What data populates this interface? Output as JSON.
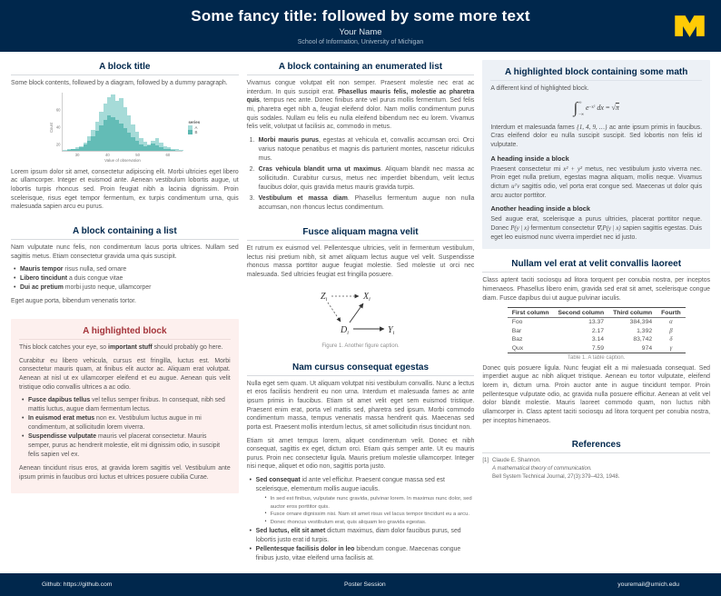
{
  "colors": {
    "michigan_blue": "#00274c",
    "maize": "#ffcb05",
    "block_title": "#00274c",
    "highlight_red_bg": "#fdf0ee",
    "highlight_red_title": "#a4343a",
    "highlight_blue_bg": "#edf1f6",
    "teal_light": "#a6dbd8",
    "teal_dark": "#5cb8b2",
    "body_text": "#565656"
  },
  "header": {
    "title": "Some fancy title: followed by some more text",
    "author": "Your Name",
    "institution": "School of Information, University of Michigan",
    "logo": "university-of-michigan-block-M"
  },
  "footer": {
    "left": "Github: https://github.com",
    "center": "Poster Session",
    "right": "youremail@umich.edu"
  },
  "col1": {
    "block1": {
      "title": "A block title",
      "intro": "Some block contents, followed by a diagram, followed by a dummy paragraph.",
      "para": "Lorem ipsum dolor sit amet, consectetur adipiscing elit. Morbi ultricies eget libero ac ullamcorper. Integer et euismod ante. Aenean vestibulum lobortis augue, ut lobortis turpis rhoncus sed. Proin feugiat nibh a lacinia dignissim. Proin scelerisque, risus eget tempor fermentum, ex turpis condimentum urna, quis malesuada sapien arcu eu purus."
    },
    "block2": {
      "title": "A block containing a list",
      "intro": "Nam vulputate nunc felis, non condimentum lacus porta ultrices. Nullam sed sagittis metus. Etiam consectetur gravida urna quis suscipit.",
      "items": [
        {
          "lead": "Mauris tempor",
          "rest": " risus nulla, sed ornare"
        },
        {
          "lead": "Libero tincidunt",
          "rest": " a duis congue vitae"
        },
        {
          "lead": "Dui ac pretium",
          "rest": " morbi justo neque, ullamcorper"
        }
      ],
      "outro": "Eget augue porta, bibendum venenatis tortor."
    },
    "block3": {
      "title": "A highlighted block",
      "lead_pre": "This block catches your eye, so ",
      "lead_bold": "important stuff",
      "lead_post": " should probably go here.",
      "para1": "Curabitur eu libero vehicula, cursus est fringilla, luctus est. Morbi consectetur mauris quam, at finibus elit auctor ac. Aliquam erat volutpat. Aenean at nisl ut ex ullamcorper eleifend et eu augue. Aenean quis velit tristique odio convallis ultrices a ac odio.",
      "items": [
        {
          "lead": "Fusce dapibus tellus",
          "rest": " vel tellus semper finibus. In consequat, nibh sed mattis luctus, augue diam fermentum lectus."
        },
        {
          "lead": "In euismod erat metus",
          "rest": " non ex. Vestibulum luctus augue in mi condimentum, at sollicitudin lorem viverra."
        },
        {
          "lead": "Suspendisse vulputate",
          "rest": " mauris vel placerat consectetur. Mauris semper, purus ac hendrerit molestie, elit mi dignissim odio, in suscipit felis sapien vel ex."
        }
      ],
      "para2": "Aenean tincidunt risus eros, at gravida lorem sagittis vel. Vestibulum ante ipsum primis in faucibus orci luctus et ultrices posuere cubilia Curae."
    }
  },
  "col2": {
    "block1": {
      "title": "A block containing an enumerated list",
      "intro_pre": "Vivamus congue volutpat elit non semper. Praesent molestie nec erat ac interdum. In quis suscipit erat. ",
      "intro_bold": "Phasellus mauris felis, molestie ac pharetra quis",
      "intro_post": ", tempus nec ante. Donec finibus ante vel purus mollis fermentum. Sed felis mi, pharetra eget nibh a, feugiat eleifend dolor. Nam mollis condimentum purus quis sodales. Nullam eu felis eu nulla eleifend bibendum nec eu lorem. Vivamus felis velit, volutpat ut facilisis ac, commodo in metus.",
      "items": [
        {
          "lead": "Morbi mauris purus",
          "rest": ", egestas at vehicula et, convallis accumsan orci. Orci varius natoque penatibus et magnis dis parturient montes, nascetur ridiculus mus."
        },
        {
          "lead": "Cras vehicula blandit urna ut maximus",
          "rest": ". Aliquam blandit nec massa ac sollicitudin. Curabitur cursus, metus nec imperdiet bibendum, velit lectus faucibus dolor, quis gravida metus mauris gravida turpis."
        },
        {
          "lead": "Vestibulum et massa diam",
          "rest": ". Phasellus fermentum augue non nulla accumsan, non rhoncus lectus condimentum."
        }
      ]
    },
    "block2": {
      "title": "Fusce aliquam magna velit",
      "para": "Et rutrum ex euismod vel. Pellentesque ultricies, velit in fermentum vestibulum, lectus nisi pretium nibh, sit amet aliquam lectus augue vel velit. Suspendisse rhoncus massa porttitor augue feugiat molestie. Sed molestie ut orci nec malesuada. Sed ultricies feugiat est fringilla posuere.",
      "figure": {
        "nodes": {
          "z": {
            "main": "Z",
            "sub": "i"
          },
          "x": {
            "main": "X",
            "sub": "i"
          },
          "d": {
            "main": "D",
            "sub": "i"
          },
          "y": {
            "main": "Y",
            "sub": "i"
          }
        },
        "caption": "Figure 1. Another figure caption."
      }
    },
    "block3": {
      "title": "Nam cursus consequat egestas",
      "para1": "Nulla eget sem quam. Ut aliquam volutpat nisi vestibulum convallis. Nunc a lectus et eros facilisis hendrerit eu non urna. Interdum et malesuada fames ac ante ipsum primis in faucibus. Etiam sit amet velit eget sem euismod tristique. Praesent enim erat, porta vel mattis sed, pharetra sed ipsum. Morbi commodo condimentum massa, tempus venenatis massa hendrerit quis. Maecenas sed porta est. Praesent mollis interdum lectus, sit amet sollicitudin risus tincidunt non.",
      "para2": "Etiam sit amet tempus lorem, aliquet condimentum velit. Donec et nibh consequat, sagittis ex eget, dictum orci. Etiam quis semper ante. Ut eu mauris purus. Proin nec consectetur ligula. Mauris pretium molestie ullamcorper. Integer nisi neque, aliquet et odio non, sagittis porta justo.",
      "item1": {
        "lead": "Sed consequat",
        "rest": " id ante vel efficitur. Praesent congue massa sed est scelerisque, elementum mollis augue iaculis.",
        "subitems": [
          "In sed est finibus, vulputate nunc gravida, pulvinar lorem. In maximus nunc dolor, sed auctor eros porttitor quis.",
          "Fusce ornare dignissim nisi. Nam sit amet risus vel lacus tempor tincidunt eu a arcu.",
          "Donec rhoncus vestibulum erat, quis aliquam leo gravida egestas."
        ]
      },
      "item2": {
        "lead": "Sed luctus, elit sit amet",
        "rest": " dictum maximus, diam dolor faucibus purus, sed lobortis justo erat id turpis."
      },
      "item3": {
        "lead": "Pellentesque facilisis dolor in leo",
        "rest": " bibendum congue. Maecenas congue finibus justo, vitae eleifend urna facilisis at."
      }
    }
  },
  "col3": {
    "block1": {
      "title": "A highlighted block containing some math",
      "intro": "A different kind of highlighted block.",
      "equation": {
        "integral": "∫",
        "upper": "∞",
        "lower": "−∞",
        "base": "e",
        "exponent": "−x²",
        "differential": "dx",
        "equals": "=",
        "radical": "√",
        "result": "π"
      },
      "para1_pre": "Interdum et malesuada fames ",
      "para1_math": "{1, 4, 9, …}",
      "para1_post": " ac ante ipsum primis in faucibus. Cras eleifend dolor eu nulla suscipit suscipit. Sed lobortis non felis id vulputate.",
      "heading1": "A heading inside a block",
      "para2_pre": "Praesent consectetur mi ",
      "para2_math1": "x² + y²",
      "para2_mid": " metus, nec vestibulum justo viverra nec. Proin eget nulla pretium, egestas magna aliquam, mollis neque. Vivamus dictum ",
      "para2_math2": "uᵀv",
      "para2_post": " sagittis odio, vel porta erat congue sed. Maecenas ut dolor quis arcu auctor porttitor.",
      "heading2": "Another heading inside a block",
      "para3_pre": "Sed augue erat, scelerisque a purus ultricies, placerat porttitor neque. Donec ",
      "para3_math1": "P(y | x)",
      "para3_mid": " fermentum consectetur ",
      "para3_math2": "∇ₓP(y | x)",
      "para3_post": " sapien sagittis egestas. Duis eget leo euismod nunc viverra imperdiet nec id justo."
    },
    "block2": {
      "title": "Nullam vel erat at velit convallis laoreet",
      "para1": "Class aptent taciti sociosqu ad litora torquent per conubia nostra, per inceptos himenaeos. Phasellus libero enim, gravida sed erat sit amet, scelerisque congue diam. Fusce dapibus dui ut augue pulvinar iaculis.",
      "table": {
        "headers": [
          "First column",
          "Second column",
          "Third column",
          "Fourth"
        ],
        "rows": [
          [
            "Foo",
            "13.37",
            "384,394",
            "α"
          ],
          [
            "Bar",
            "2.17",
            "1,392",
            "β"
          ],
          [
            "Baz",
            "3.14",
            "83,742",
            "δ"
          ],
          [
            "Qux",
            "7.59",
            "974",
            "γ"
          ]
        ],
        "caption": "Table 1. A table caption."
      },
      "para2": "Donec quis posuere ligula. Nunc feugiat elit a mi malesuada consequat. Sed imperdiet augue ac nibh aliquet tristique. Aenean eu tortor vulputate, eleifend lorem in, dictum urna. Proin auctor ante in augue tincidunt tempor. Proin pellentesque vulputate odio, ac gravida nulla posuere efficitur. Aenean at velit vel dolor blandit molestie. Mauris laoreet commodo quam, non luctus nibh ullamcorper in. Class aptent taciti sociosqu ad litora torquent per conubia nostra, per inceptos himenaeos."
    },
    "block3": {
      "title": "References",
      "entries": [
        {
          "num": "[1]",
          "authors": "Claude E. Shannon.",
          "title": "A mathematical theory of communication.",
          "venue": "Bell System Technical Journal, 27(3):379–423, 1948."
        }
      ]
    }
  },
  "chart_data": {
    "type": "histogram",
    "title": "",
    "xlabel": "Value of observation",
    "ylabel": "Count",
    "xticks": [
      "30",
      "40",
      "50",
      "60"
    ],
    "yticks": [
      {
        "label": "20",
        "pos": 25
      },
      {
        "label": "40",
        "pos": 50
      },
      {
        "label": "60",
        "pos": 75
      }
    ],
    "legend": {
      "title": "series",
      "items": [
        {
          "label": "A",
          "color": "#a6dbd8"
        },
        {
          "label": "B",
          "color": "#5cb8b2"
        }
      ]
    },
    "series": [
      {
        "name": "A",
        "color": "#a6dbd8",
        "opacity": 1,
        "values": [
          1,
          2,
          3,
          5,
          8,
          14,
          24,
          36,
          50,
          66,
          80,
          92,
          97,
          86,
          90,
          74,
          60,
          45,
          32,
          22,
          15,
          11,
          17,
          21,
          13,
          8,
          5,
          3,
          2,
          1
        ]
      },
      {
        "name": "B",
        "color": "#5cb8b2",
        "opacity": 0.9,
        "values": [
          0,
          1,
          2,
          3,
          6,
          10,
          16,
          24,
          34,
          44,
          53,
          60,
          57,
          52,
          47,
          39,
          31,
          23,
          16,
          11,
          8,
          9,
          12,
          9,
          5,
          3,
          2,
          1,
          0,
          0
        ]
      }
    ]
  }
}
